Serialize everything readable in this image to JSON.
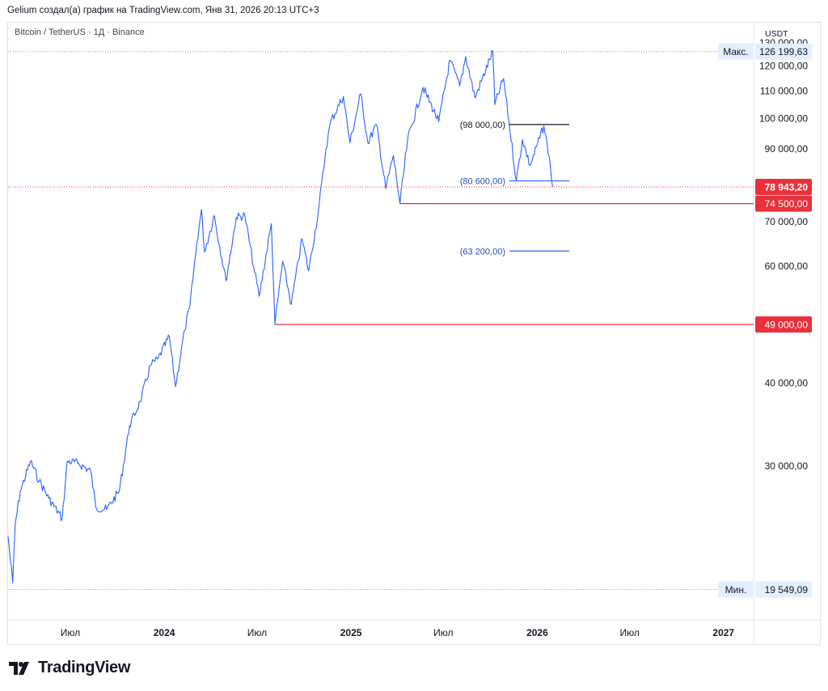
{
  "header": {
    "attribution": "Gelium создал(а) график на TradingView.com, Янв 31, 2026 20:13 UTC+3"
  },
  "symbol": {
    "label": "Bitcoin / TetherUS · 1Д · Binance"
  },
  "currency": "USDT",
  "footer": {
    "logo_text": "TradingView"
  },
  "colors": {
    "series": "#2962ff",
    "support": "#e8313c",
    "resistance": "#131722",
    "level_label": "#1e4fb5",
    "label_bg_red": "#e8313c",
    "label_bg_light": "#e3effd"
  },
  "chart_data": {
    "type": "line",
    "title": "Bitcoin / TetherUS · 1Д · Binance",
    "y_axis": {
      "ticks": [
        "130 000,00",
        "120 000,00",
        "110 000,00",
        "100 000,00",
        "90 000,00",
        "70 000,00",
        "60 000,00",
        "40 000,00",
        "30 000,00"
      ],
      "tick_values": [
        130000,
        120000,
        110000,
        100000,
        90000,
        70000,
        60000,
        40000,
        30000
      ],
      "scale": "log",
      "range": [
        17600,
        139500
      ],
      "position": "right"
    },
    "x_axis": {
      "ticks": [
        {
          "label": "Июл",
          "date": "2023-07-01",
          "year": false
        },
        {
          "label": "2024",
          "date": "2024-01-01",
          "year": true
        },
        {
          "label": "Июл",
          "date": "2024-07-01",
          "year": false
        },
        {
          "label": "2025",
          "date": "2025-01-01",
          "year": true
        },
        {
          "label": "Июл",
          "date": "2025-07-01",
          "year": false
        },
        {
          "label": "2026",
          "date": "2026-01-01",
          "year": true
        },
        {
          "label": "Июл",
          "date": "2026-07-01",
          "year": false
        },
        {
          "label": "2027",
          "date": "2027-01-01",
          "year": true
        }
      ],
      "range": [
        "2023-03-01",
        "2027-03-01"
      ]
    },
    "series": [
      {
        "values": [
          {
            "d": "2023-03-01",
            "v": 23500
          },
          {
            "d": "2023-03-10",
            "v": 20000
          },
          {
            "d": "2023-03-15",
            "v": 24500
          },
          {
            "d": "2023-03-25",
            "v": 27500
          },
          {
            "d": "2023-04-14",
            "v": 30500
          },
          {
            "d": "2023-05-01",
            "v": 28500
          },
          {
            "d": "2023-05-20",
            "v": 26800
          },
          {
            "d": "2023-06-15",
            "v": 25000
          },
          {
            "d": "2023-06-25",
            "v": 30500
          },
          {
            "d": "2023-07-15",
            "v": 30300
          },
          {
            "d": "2023-08-10",
            "v": 29500
          },
          {
            "d": "2023-08-20",
            "v": 26000
          },
          {
            "d": "2023-09-10",
            "v": 25800
          },
          {
            "d": "2023-10-05",
            "v": 27500
          },
          {
            "d": "2023-10-25",
            "v": 34500
          },
          {
            "d": "2023-11-15",
            "v": 37500
          },
          {
            "d": "2023-12-05",
            "v": 42500
          },
          {
            "d": "2023-12-20",
            "v": 43500
          },
          {
            "d": "2024-01-11",
            "v": 47000
          },
          {
            "d": "2024-01-23",
            "v": 39500
          },
          {
            "d": "2024-02-10",
            "v": 48000
          },
          {
            "d": "2024-02-20",
            "v": 52000
          },
          {
            "d": "2024-03-05",
            "v": 65000
          },
          {
            "d": "2024-03-14",
            "v": 73000
          },
          {
            "d": "2024-03-20",
            "v": 63000
          },
          {
            "d": "2024-04-08",
            "v": 71500
          },
          {
            "d": "2024-05-01",
            "v": 57000
          },
          {
            "d": "2024-05-21",
            "v": 71000
          },
          {
            "d": "2024-06-07",
            "v": 71500
          },
          {
            "d": "2024-06-24",
            "v": 60000
          },
          {
            "d": "2024-07-05",
            "v": 54000
          },
          {
            "d": "2024-07-29",
            "v": 69500
          },
          {
            "d": "2024-08-05",
            "v": 49000
          },
          {
            "d": "2024-08-20",
            "v": 61000
          },
          {
            "d": "2024-09-06",
            "v": 52500
          },
          {
            "d": "2024-09-27",
            "v": 66000
          },
          {
            "d": "2024-10-10",
            "v": 59000
          },
          {
            "d": "2024-10-29",
            "v": 72500
          },
          {
            "d": "2024-11-13",
            "v": 90000
          },
          {
            "d": "2024-11-22",
            "v": 99000
          },
          {
            "d": "2024-12-17",
            "v": 108000
          },
          {
            "d": "2024-12-30",
            "v": 92000
          },
          {
            "d": "2025-01-20",
            "v": 109000
          },
          {
            "d": "2025-02-03",
            "v": 92000
          },
          {
            "d": "2025-02-20",
            "v": 98000
          },
          {
            "d": "2025-03-10",
            "v": 78500
          },
          {
            "d": "2025-03-25",
            "v": 88000
          },
          {
            "d": "2025-04-07",
            "v": 74500
          },
          {
            "d": "2025-04-22",
            "v": 93000
          },
          {
            "d": "2025-05-22",
            "v": 111500
          },
          {
            "d": "2025-06-22",
            "v": 99000
          },
          {
            "d": "2025-07-14",
            "v": 122500
          },
          {
            "d": "2025-08-02",
            "v": 112000
          },
          {
            "d": "2025-08-14",
            "v": 124000
          },
          {
            "d": "2025-09-01",
            "v": 107500
          },
          {
            "d": "2025-10-06",
            "v": 126199.63
          },
          {
            "d": "2025-10-10",
            "v": 105000
          },
          {
            "d": "2025-10-27",
            "v": 115000
          },
          {
            "d": "2025-11-21",
            "v": 80600
          },
          {
            "d": "2025-12-03",
            "v": 93000
          },
          {
            "d": "2025-12-18",
            "v": 85000
          },
          {
            "d": "2026-01-14",
            "v": 97500
          },
          {
            "d": "2026-01-24",
            "v": 88000
          },
          {
            "d": "2026-01-31",
            "v": 78943.2
          }
        ]
      }
    ],
    "max_label": {
      "text": "Макс.",
      "value_text": "126 199,63",
      "value": 126199.63
    },
    "min_label": {
      "text": "Мин.",
      "value_text": "19 549,09",
      "value": 19549.09
    },
    "current_price": {
      "value_text": "78 943,20",
      "value": 78943.2
    },
    "horizontal_levels": [
      {
        "value_text": "74 500,00",
        "value": 74500,
        "from": "2025-04-07",
        "kind": "support"
      },
      {
        "value_text": "49 000,00",
        "value": 49000,
        "from": "2024-08-05",
        "kind": "support"
      }
    ],
    "annotated_levels": [
      {
        "text": "(98 000,00)",
        "value": 98000,
        "from": "2025-11-21",
        "to": "2026-03-15",
        "kind": "resistance"
      },
      {
        "text": "(80 600,00)",
        "value": 80600,
        "from": "2025-11-21",
        "to": "2026-03-15",
        "kind": "level"
      },
      {
        "text": "(63 200,00)",
        "value": 63200,
        "from": "2025-11-21",
        "to": "2026-03-15",
        "kind": "level"
      }
    ],
    "grid": false
  }
}
